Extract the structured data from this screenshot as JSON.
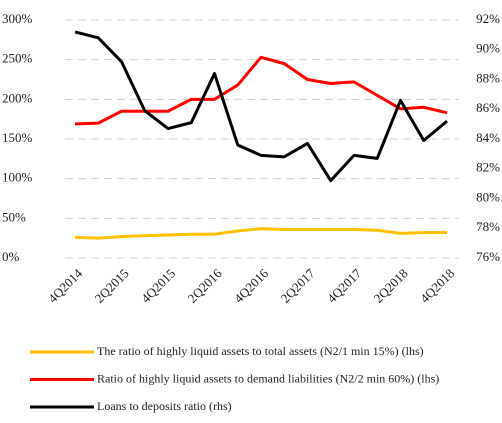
{
  "chart_data": {
    "type": "line",
    "categories": [
      "4Q2014",
      null,
      "2Q2015",
      null,
      "4Q2015",
      null,
      "2Q2016",
      null,
      "4Q2016",
      null,
      "2Q2017",
      null,
      "4Q2017",
      null,
      "2Q2018",
      null,
      "4Q2018"
    ],
    "series": [
      {
        "name": "The ratio of highly liquid assets to total assets (N2/1 min 15%) (lhs)",
        "color": "#ffc000",
        "values": [
          26,
          25,
          27,
          28,
          29,
          30,
          30,
          34,
          37,
          36,
          36,
          36,
          36,
          35,
          31,
          32,
          32
        ]
      },
      {
        "name": "Ratio of highly liquid assets to demand liabilities (N2/2 min 60%) (lhs)",
        "color": "#ff0000",
        "values": [
          169,
          170,
          185,
          185,
          185,
          200,
          200,
          218,
          253,
          245,
          225,
          220,
          222,
          205,
          188,
          190,
          183
        ]
      },
      {
        "name": "Loans to deposits ratio (rhs)",
        "color": "#000000",
        "axis": "y2",
        "values": [
          91.2,
          90.8,
          89.2,
          85.9,
          84.7,
          85.1,
          88.4,
          83.6,
          82.9,
          82.8,
          83.7,
          81.2,
          82.9,
          82.7,
          86.6,
          83.9,
          85.2
        ]
      }
    ],
    "ylim": [
      0,
      300
    ],
    "yticks": [
      {
        "value": 0,
        "label": "0%"
      },
      {
        "value": 50,
        "label": "50%"
      },
      {
        "value": 100,
        "label": "100%"
      },
      {
        "value": 150,
        "label": "150%"
      },
      {
        "value": 200,
        "label": "200%"
      },
      {
        "value": 250,
        "label": "250%"
      },
      {
        "value": 300,
        "label": "300%"
      }
    ],
    "y2lim": [
      76,
      92
    ],
    "y2ticks": [
      {
        "value": 76,
        "label": "76%"
      },
      {
        "value": 78,
        "label": "78%"
      },
      {
        "value": 80,
        "label": "80%"
      },
      {
        "value": 82,
        "label": "82%"
      },
      {
        "value": 84,
        "label": "84%"
      },
      {
        "value": 86,
        "label": "86%"
      },
      {
        "value": 88,
        "label": "88%"
      },
      {
        "value": 90,
        "label": "90%"
      },
      {
        "value": 92,
        "label": "92%"
      }
    ],
    "grid": true
  }
}
